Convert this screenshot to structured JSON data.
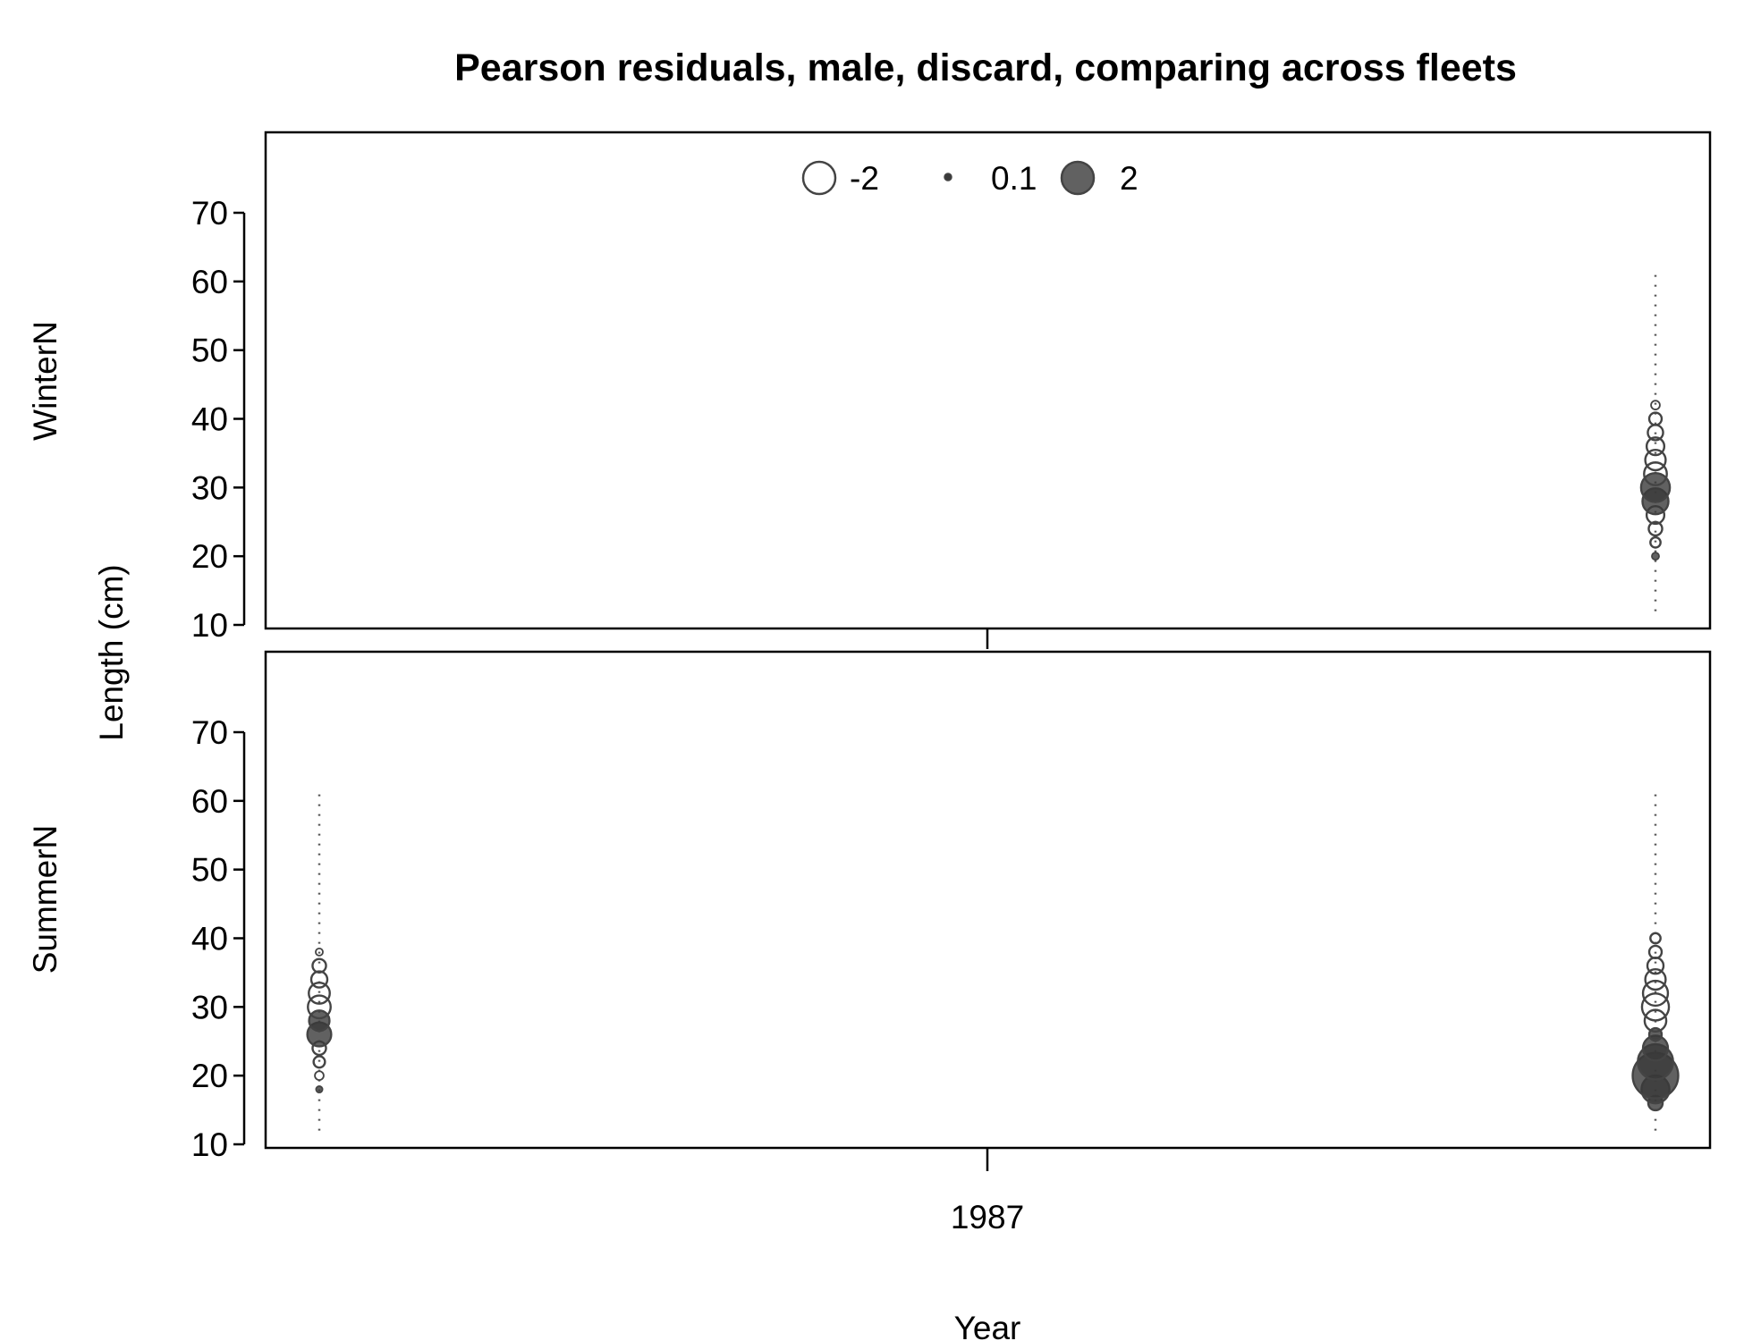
{
  "chart_data": {
    "type": "scatter",
    "subtype": "bubble",
    "title": "Pearson residuals, male, discard, comparing across fleets",
    "xlabel": "Year",
    "ylabel": "Length (cm)",
    "x_ticks": [
      "1987"
    ],
    "y_ticks": [
      10,
      20,
      30,
      40,
      50,
      60,
      70
    ],
    "ylim": [
      10,
      80
    ],
    "legend": {
      "placement": "top-center",
      "entries": [
        {
          "label": "-2",
          "value": -2
        },
        {
          "label": "0.1",
          "value": 0.1
        },
        {
          "label": "2",
          "value": 2
        }
      ]
    },
    "colors": {
      "positive_fill": "#3a3a3a",
      "negative_fill": "#ffffff",
      "stroke": "#444444",
      "guide": "#555555"
    },
    "panels": [
      {
        "name": "WinterN",
        "columns": [
          {
            "x_position": "right",
            "lengths": [
              12,
              14,
              16,
              18,
              20,
              22,
              24,
              26,
              28,
              30,
              32,
              34,
              36,
              38,
              40,
              42,
              44,
              46,
              48,
              50,
              52,
              54,
              56,
              58,
              60,
              62
            ],
            "residuals": [
              0.02,
              0.03,
              0.04,
              0.06,
              0.1,
              -0.2,
              -0.35,
              -0.6,
              1.3,
              1.6,
              -1.0,
              -0.8,
              -0.6,
              -0.45,
              -0.3,
              -0.15,
              -0.06,
              -0.05,
              -0.04,
              -0.03,
              -0.03,
              -0.02,
              -0.02,
              -0.02,
              -0.02,
              -0.02
            ]
          }
        ]
      },
      {
        "name": "SummerN",
        "columns": [
          {
            "x_position": "left",
            "lengths": [
              12,
              14,
              16,
              18,
              20,
              22,
              24,
              26,
              28,
              30,
              32,
              34,
              36,
              38,
              40,
              42,
              44,
              46,
              48,
              50,
              52,
              54,
              56,
              58,
              60,
              62
            ],
            "residuals": [
              0.02,
              0.03,
              0.05,
              0.08,
              -0.15,
              -0.25,
              -0.35,
              1.1,
              0.8,
              -1.0,
              -0.85,
              -0.5,
              -0.35,
              -0.1,
              -0.05,
              -0.04,
              -0.03,
              -0.03,
              -0.02,
              -0.02,
              -0.02,
              -0.02,
              -0.02,
              -0.02,
              -0.02,
              -0.02
            ]
          },
          {
            "x_position": "right",
            "lengths": [
              12,
              14,
              16,
              18,
              20,
              22,
              24,
              26,
              28,
              30,
              32,
              34,
              36,
              38,
              40,
              42,
              44,
              46,
              48,
              50,
              52,
              54,
              56,
              58,
              60,
              62
            ],
            "residuals": [
              0.03,
              0.06,
              0.4,
              1.5,
              4.0,
              2.4,
              1.2,
              0.3,
              -0.9,
              -1.4,
              -1.2,
              -0.8,
              -0.5,
              -0.3,
              -0.2,
              -0.06,
              -0.04,
              -0.03,
              -0.03,
              -0.02,
              -0.02,
              -0.02,
              -0.02,
              -0.02,
              -0.02,
              -0.02
            ]
          }
        ]
      }
    ]
  }
}
